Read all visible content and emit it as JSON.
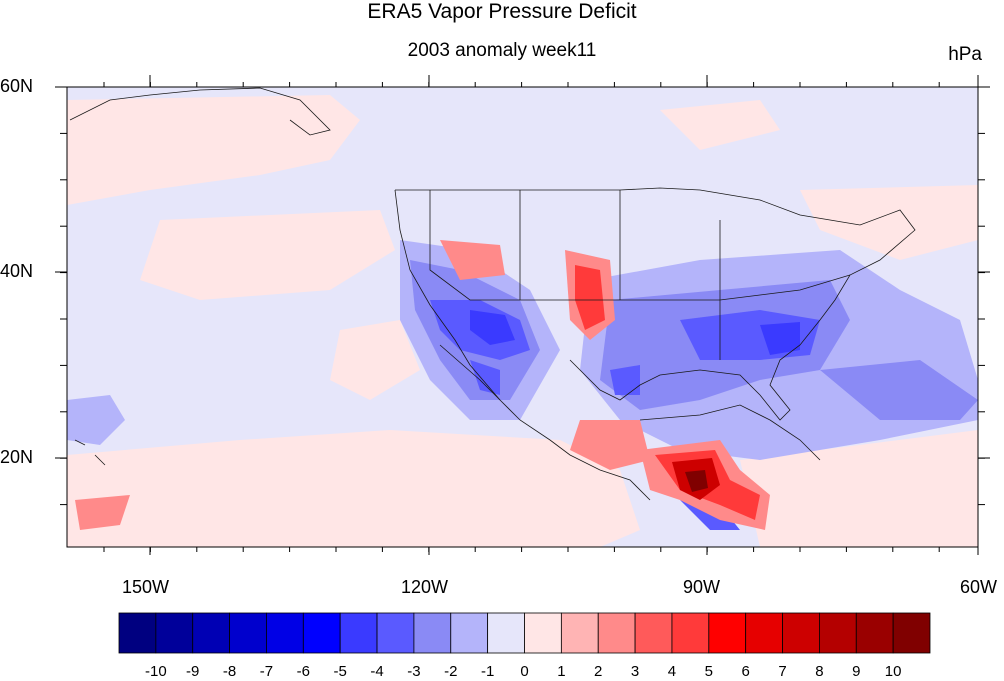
{
  "title": "ERA5 Vapor Pressure Deficit",
  "subtitle": "2003 anomaly week11",
  "units": "hPa",
  "lat_labels": [
    "60N",
    "40N",
    "20N"
  ],
  "lon_labels": [
    "150W",
    "120W",
    "90W",
    "60W"
  ],
  "colorbar": {
    "labels": [
      "-10",
      "-9",
      "-8",
      "-7",
      "-6",
      "-5",
      "-4",
      "-3",
      "-2",
      "-1",
      "0",
      "1",
      "2",
      "3",
      "4",
      "5",
      "6",
      "7",
      "8",
      "9",
      "10"
    ],
    "colors": [
      "#000080",
      "#00009a",
      "#0000b4",
      "#0000cd",
      "#0000e6",
      "#0000ff",
      "#3a3aff",
      "#5a5aff",
      "#8a8af5",
      "#b4b4fa",
      "#e6e6fa",
      "#ffe6e6",
      "#ffb4b4",
      "#ff8a8a",
      "#ff5a5a",
      "#ff3a3a",
      "#ff0000",
      "#e60000",
      "#cd0000",
      "#b40000",
      "#9a0000",
      "#800000"
    ]
  },
  "colors": {
    "background_anomaly": "#e6e6fa",
    "coastline": "#1a1a1a"
  }
}
